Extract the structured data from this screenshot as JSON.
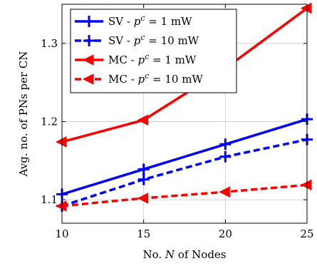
{
  "chart_data": {
    "type": "line",
    "title": "",
    "xlabel": "No. N of Nodes",
    "ylabel": "Avg. no. of PNs per CN",
    "x": [
      10,
      15,
      20,
      25
    ],
    "xlim": [
      10,
      25
    ],
    "ylim": [
      1.07,
      1.35
    ],
    "xticks": [
      "10",
      "15",
      "20",
      "25"
    ],
    "yticks": [
      {
        "value": 1.1,
        "label": "1.1"
      },
      {
        "value": 1.2,
        "label": "1.2"
      },
      {
        "value": 1.3,
        "label": "1.3"
      }
    ],
    "grid": true,
    "legend_position": "top-left",
    "series": [
      {
        "name": "SV - p^c = 1 mW",
        "label_prefix": "SV - ",
        "label_suffix": " = 1 mW",
        "values": [
          1.107,
          1.139,
          1.171,
          1.203
        ],
        "color": "#0000ff",
        "dashed": false,
        "marker": "plus"
      },
      {
        "name": "SV - p^c = 10 mW",
        "label_prefix": "SV - ",
        "label_suffix": " = 10 mW",
        "values": [
          1.092,
          1.126,
          1.155,
          1.177
        ],
        "color": "#0000ff",
        "dashed": true,
        "marker": "plus"
      },
      {
        "name": "MC - p^c = 1 mW",
        "label_prefix": "MC - ",
        "label_suffix": " = 1 mW",
        "values": [
          1.174,
          1.202,
          1.268,
          1.345
        ],
        "color": "#ff0000",
        "dashed": false,
        "marker": "triangle-left"
      },
      {
        "name": "MC - p^c = 10 mW",
        "label_prefix": "MC - ",
        "label_suffix": " = 10 mW",
        "values": [
          1.092,
          1.102,
          1.11,
          1.119
        ],
        "color": "#ff0000",
        "dashed": true,
        "marker": "triangle-left"
      }
    ]
  }
}
